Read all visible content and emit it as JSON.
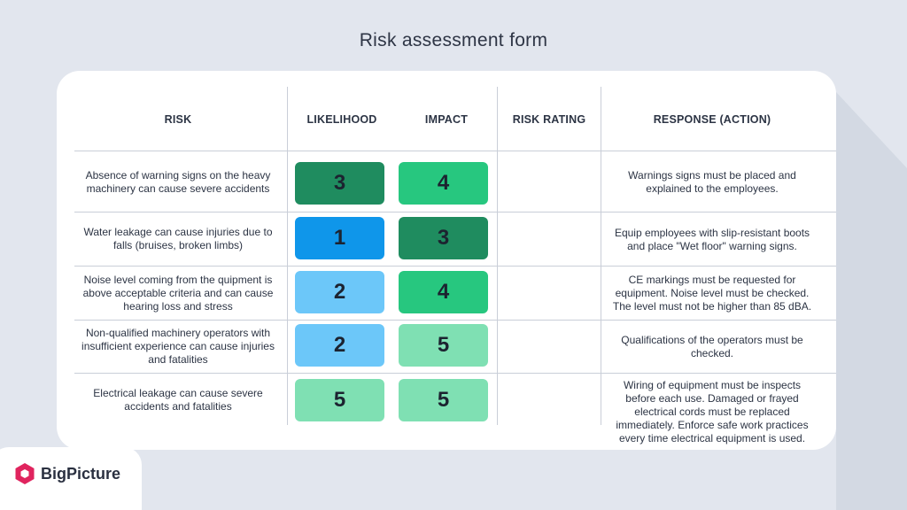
{
  "title": "Risk assessment form",
  "headers": {
    "risk": "RISK",
    "likelihood": "LIKELIHOOD",
    "impact": "IMPACT",
    "rating": "RISK RATING",
    "response": "RESPONSE (ACTION)"
  },
  "rows": [
    {
      "risk": "Absence of warning signs on the heavy machinery can cause severe accidents",
      "likelihood": "3",
      "likelihood_color": "#1f8c5f",
      "impact": "4",
      "impact_color": "#27c77f",
      "response": "Warnings signs must be placed and explained to the employees."
    },
    {
      "risk": "Water leakage can cause injuries due to falls (bruises, broken limbs)",
      "likelihood": "1",
      "likelihood_color": "#0f96ea",
      "impact": "3",
      "impact_color": "#1f8c5f",
      "response": "Equip employees with slip-resistant boots and place \"Wet floor\" warning signs."
    },
    {
      "risk": "Noise level coming from the quipment is above acceptable criteria and can cause hearing loss and stress",
      "likelihood": "2",
      "likelihood_color": "#6cc7f9",
      "impact": "4",
      "impact_color": "#27c77f",
      "response": "CE markings must be requested for equipment. Noise level must be checked. The level must not be higher than 85 dBA."
    },
    {
      "risk": "Non-qualified machinery operators with insufficient experience can cause injuries and fatalities",
      "likelihood": "2",
      "likelihood_color": "#6cc7f9",
      "impact": "5",
      "impact_color": "#7fe0b3",
      "response": "Qualifications of the operators must be checked."
    },
    {
      "risk": "Electrical leakage can cause severe accidents and fatalities",
      "likelihood": "5",
      "likelihood_color": "#7fe0b3",
      "impact": "5",
      "impact_color": "#7fe0b3",
      "response": "Wiring of equipment must be inspects before each use. Damaged or frayed electrical cords must be replaced immediately. Enforce safe work practices every time electrical equipment is used."
    }
  ],
  "brand": {
    "name": "BigPicture",
    "icon": "hexagon-logo-icon",
    "color": "#e0245e"
  },
  "colors": {
    "background": "#e2e6ee",
    "card": "#ffffff",
    "divider": "#c9ced8"
  }
}
